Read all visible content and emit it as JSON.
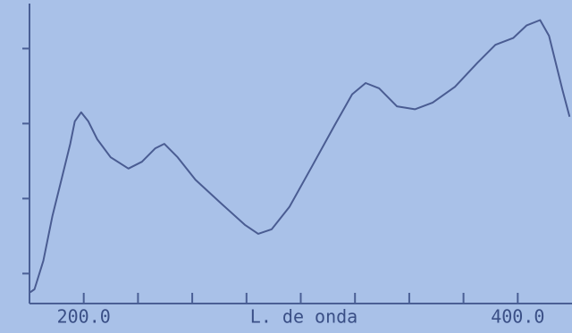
{
  "chart_data": {
    "type": "line",
    "x_label": "L. de onda",
    "x": [
      175.3,
      177.3,
      181.4,
      185.6,
      189.7,
      193.8,
      195.9,
      198.8,
      202.1,
      206.2,
      212.4,
      220.6,
      226.8,
      233.0,
      237.1,
      243.3,
      251.5,
      263.9,
      274.2,
      280.4,
      286.6,
      294.8,
      305.2,
      315.5,
      323.7,
      329.9,
      336.1,
      344.3,
      352.6,
      360.8,
      371.1,
      381.4,
      389.7,
      397.9,
      404.1,
      410.3,
      414.4,
      420.6,
      423.9
    ],
    "series": [
      {
        "color": "#4a5c92",
        "values": [
          0.75,
          0.79,
          1.17,
          1.77,
          2.25,
          2.73,
          3.03,
          3.15,
          3.03,
          2.79,
          2.55,
          2.4,
          2.49,
          2.67,
          2.73,
          2.55,
          2.25,
          1.92,
          1.65,
          1.53,
          1.59,
          1.89,
          2.43,
          2.97,
          3.39,
          3.54,
          3.47,
          3.23,
          3.19,
          3.28,
          3.49,
          3.81,
          4.05,
          4.14,
          4.31,
          4.38,
          4.17,
          3.45,
          3.09
        ]
      }
    ],
    "xlim": [
      175,
      425
    ],
    "xticks": [
      {
        "value": 200,
        "label": "200.0"
      },
      {
        "value": 400,
        "label": "400.0"
      }
    ],
    "xminor_ticks": [
      225,
      250,
      275,
      300,
      325,
      350,
      375
    ],
    "ylim": [
      0.6,
      4.6
    ],
    "yminor_ticks": [
      1,
      2,
      3,
      4
    ]
  }
}
